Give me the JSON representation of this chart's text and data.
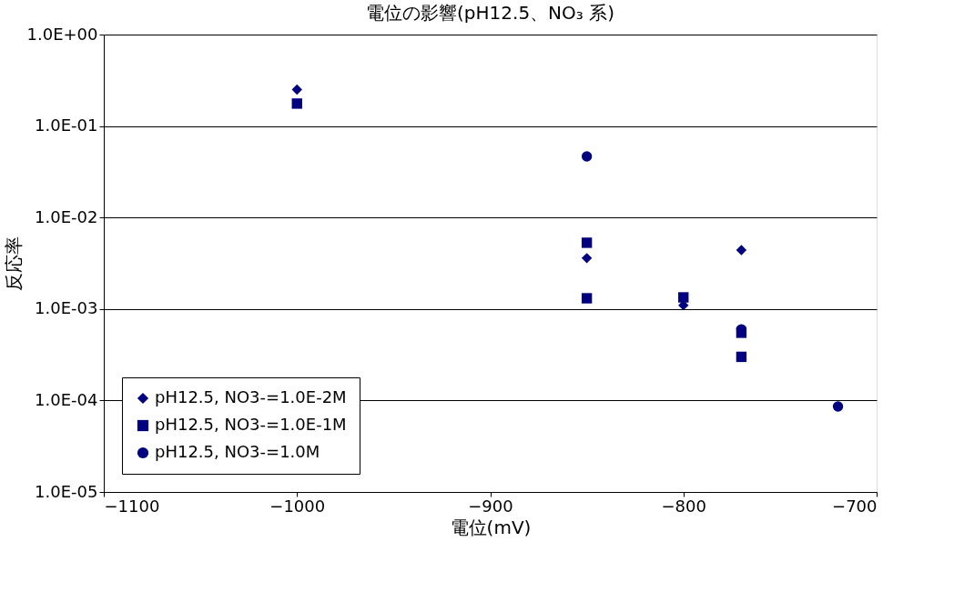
{
  "chart_data": {
    "type": "scatter",
    "title": "電位の影響(pH12.5、NO₃ 系)",
    "xlabel": "電位(mV)",
    "ylabel": "反応率",
    "series": [
      {
        "name": "pH12.5, NO3-=1.0E-2M",
        "color": "#000080",
        "marker": "diamond",
        "x": [
          -1000,
          -850,
          -800,
          -770
        ],
        "values": [
          0.25,
          0.0036,
          0.0011,
          0.0044
        ]
      },
      {
        "name": "pH12.5, NO3-=1.0E-1M",
        "color": "#000080",
        "marker": "square",
        "x": [
          -1000,
          -850,
          -850,
          -800,
          -770,
          -770
        ],
        "values": [
          0.176,
          0.0053,
          0.00131,
          0.00134,
          0.00055,
          0.0003
        ]
      },
      {
        "name": "pH12.5, NO3-=1.0M",
        "color": "#000080",
        "marker": "circle",
        "x": [
          -850,
          -770,
          -720
        ],
        "values": [
          0.0466,
          0.0006,
          8.6e-05
        ]
      }
    ],
    "xlim": [
      -1100,
      -700
    ],
    "xticks": [
      -1100,
      -1000,
      -900,
      -800,
      -700
    ],
    "ylim": [
      1e-05,
      1
    ],
    "log": true,
    "yticks": [
      {
        "value": 1e-05,
        "label": "1.0E-05"
      },
      {
        "value": 0.0001,
        "label": "1.0E-04"
      },
      {
        "value": 0.001,
        "label": "1.0E-03"
      },
      {
        "value": 0.01,
        "label": "1.0E-02"
      },
      {
        "value": 0.1,
        "label": "1.0E-01"
      },
      {
        "value": 1,
        "label": "1.0E+00"
      }
    ],
    "grid": "y",
    "legend": "bottom left"
  }
}
